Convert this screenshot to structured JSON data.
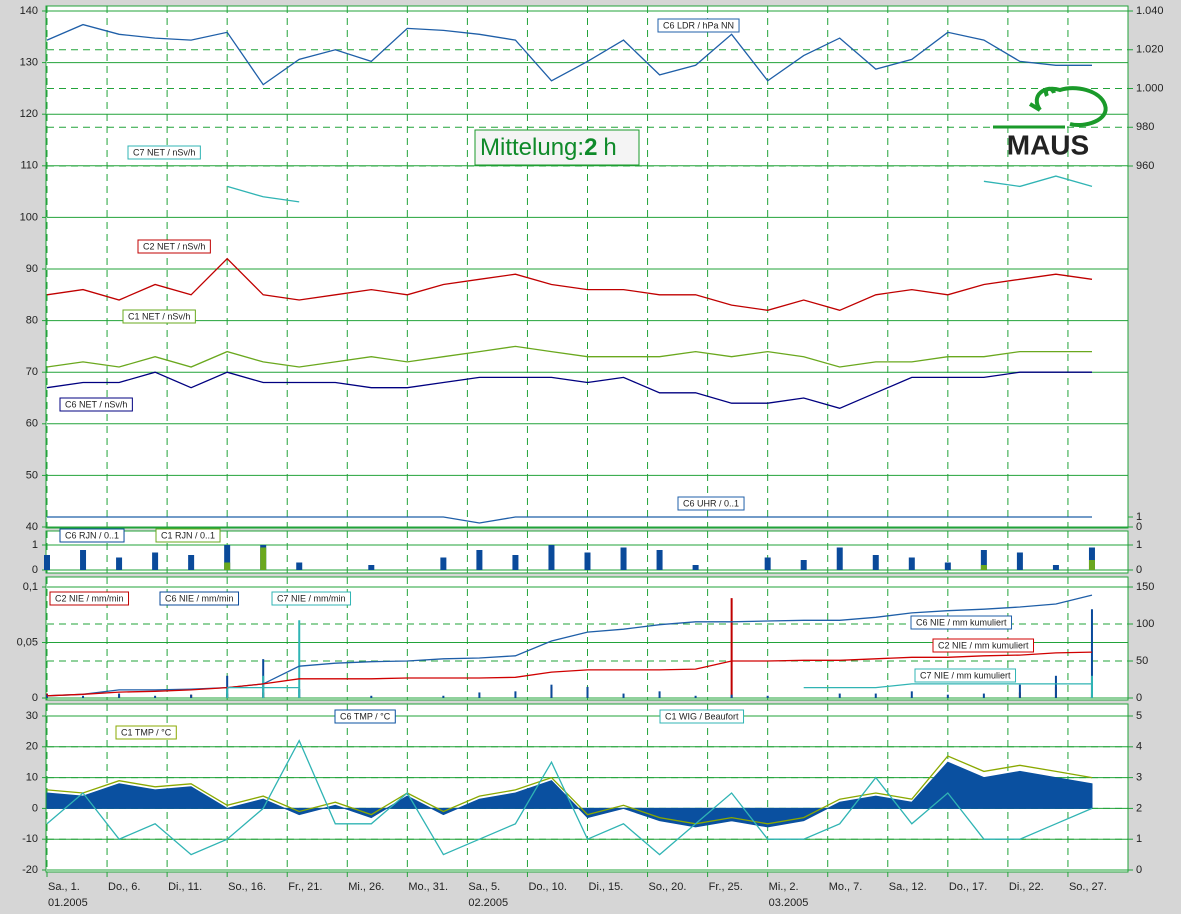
{
  "logo": "MAUS",
  "chart_data": [
    {
      "type": "line",
      "annotation": [
        "Mittelung:",
        "2",
        "h"
      ],
      "xlim": [
        "2005-01-01",
        "2005-04-01"
      ],
      "x": [
        "2005-01-01",
        "2005-01-04",
        "2005-01-07",
        "2005-01-10",
        "2005-01-13",
        "2005-01-16",
        "2005-01-19",
        "2005-01-22",
        "2005-01-25",
        "2005-01-28",
        "2005-01-31",
        "2005-02-03",
        "2005-02-06",
        "2005-02-09",
        "2005-02-12",
        "2005-02-15",
        "2005-02-18",
        "2005-02-21",
        "2005-02-24",
        "2005-02-27",
        "2005-03-02",
        "2005-03-05",
        "2005-03-08",
        "2005-03-11",
        "2005-03-14",
        "2005-03-17",
        "2005-03-20",
        "2005-03-23",
        "2005-03-26",
        "2005-03-29"
      ],
      "ylim": [
        40,
        140
      ],
      "yticks": [
        40,
        50,
        60,
        70,
        80,
        90,
        100,
        110,
        120,
        130,
        140
      ],
      "y2lim": [
        773.7,
        1040
      ],
      "y2ticks": [
        960,
        980,
        {
          "value": 1000,
          "label": "1.000"
        },
        {
          "value": 1020,
          "label": "1.020"
        },
        {
          "value": 1040,
          "label": "1.040"
        }
      ],
      "y3lim": [
        0,
        1
      ],
      "y3ticks": [
        0,
        1
      ],
      "grid": true,
      "series": [
        {
          "name": "C6 LDR / hPa NN",
          "color": "#1f5fa8",
          "axis": "y2",
          "values": [
            1025,
            1033,
            1028,
            1026,
            1025,
            1029,
            1002,
            1015,
            1020,
            1014,
            1031,
            1030,
            1028,
            1025,
            1004,
            1014,
            1025,
            1007,
            1012,
            1028,
            1004,
            1017,
            1026,
            1010,
            1015,
            1029,
            1025,
            1014,
            1012,
            1012
          ]
        },
        {
          "name": "C7 NET / nSv/h",
          "color": "#30b4b4",
          "values": [
            null,
            null,
            null,
            null,
            null,
            106,
            104,
            103,
            null,
            null,
            null,
            null,
            null,
            null,
            null,
            null,
            null,
            null,
            null,
            null,
            null,
            null,
            null,
            null,
            null,
            null,
            107,
            106,
            108,
            106
          ]
        },
        {
          "name": "C2 NET / nSv/h",
          "color": "#c00000",
          "values": [
            85,
            86,
            84,
            87,
            85,
            92,
            85,
            84,
            85,
            86,
            85,
            87,
            88,
            89,
            87,
            86,
            86,
            85,
            85,
            83,
            82,
            84,
            82,
            85,
            86,
            85,
            87,
            88,
            89,
            88
          ]
        },
        {
          "name": "C1 NET / nSv/h",
          "color": "#6aa81e",
          "values": [
            71,
            72,
            71,
            73,
            71,
            74,
            72,
            71,
            72,
            73,
            72,
            73,
            74,
            75,
            74,
            73,
            73,
            73,
            74,
            73,
            74,
            73,
            71,
            72,
            72,
            73,
            73,
            74,
            74,
            74
          ]
        },
        {
          "name": "C6 NET / nSv/h",
          "color": "#000080",
          "values": [
            67,
            68,
            68,
            70,
            67,
            70,
            68,
            68,
            68,
            67,
            67,
            68,
            69,
            69,
            69,
            68,
            69,
            66,
            66,
            64,
            64,
            65,
            63,
            66,
            69,
            69,
            69,
            70,
            70,
            70
          ]
        },
        {
          "name": "C6 UHR / 0..1",
          "color": "#1f5fa8",
          "axis": "y3",
          "values": [
            1,
            1,
            1,
            1,
            1,
            1,
            1,
            1,
            1,
            1,
            1,
            1,
            0.4,
            1,
            1,
            1,
            1,
            1,
            1,
            1,
            1,
            1,
            1,
            1,
            1,
            1,
            1,
            1,
            1,
            1
          ]
        }
      ]
    },
    {
      "type": "bar",
      "xlim": [
        "2005-01-01",
        "2005-04-01"
      ],
      "x": [
        "2005-01-01",
        "2005-01-04",
        "2005-01-07",
        "2005-01-10",
        "2005-01-13",
        "2005-01-16",
        "2005-01-19",
        "2005-01-22",
        "2005-01-25",
        "2005-01-28",
        "2005-01-31",
        "2005-02-03",
        "2005-02-06",
        "2005-02-09",
        "2005-02-12",
        "2005-02-15",
        "2005-02-18",
        "2005-02-21",
        "2005-02-24",
        "2005-02-27",
        "2005-03-02",
        "2005-03-05",
        "2005-03-08",
        "2005-03-11",
        "2005-03-14",
        "2005-03-17",
        "2005-03-20",
        "2005-03-23",
        "2005-03-26",
        "2005-03-29"
      ],
      "ylim": [
        0,
        1
      ],
      "yticks": [
        0,
        1
      ],
      "y2lim": [
        0,
        1
      ],
      "y2ticks": [
        0,
        1
      ],
      "grid": true,
      "series": [
        {
          "name": "C6 RJN / 0..1",
          "color": "#0a4a9a",
          "values": [
            0.6,
            0.8,
            0.5,
            0.7,
            0.6,
            1,
            1,
            0.3,
            0,
            0.2,
            0,
            0.5,
            0.8,
            0.6,
            1,
            0.7,
            0.9,
            0.8,
            0.2,
            0,
            0.5,
            0.4,
            0.9,
            0.6,
            0.5,
            0.3,
            0.8,
            0.7,
            0.2,
            0.9
          ]
        },
        {
          "name": "C1 RJN / 0..1",
          "color": "#6aa81e",
          "values": [
            0,
            0,
            0,
            0,
            0,
            0.3,
            0.9,
            0,
            0,
            0,
            0,
            0,
            0,
            0,
            0,
            0,
            0,
            0,
            0,
            0,
            0,
            0,
            0,
            0,
            0,
            0,
            0.2,
            0,
            0,
            0.4
          ]
        }
      ]
    },
    {
      "type": "line",
      "xlim": [
        "2005-01-01",
        "2005-04-01"
      ],
      "x": [
        "2005-01-01",
        "2005-01-04",
        "2005-01-07",
        "2005-01-10",
        "2005-01-13",
        "2005-01-16",
        "2005-01-19",
        "2005-01-22",
        "2005-01-25",
        "2005-01-28",
        "2005-01-31",
        "2005-02-03",
        "2005-02-06",
        "2005-02-09",
        "2005-02-12",
        "2005-02-15",
        "2005-02-18",
        "2005-02-21",
        "2005-02-24",
        "2005-02-27",
        "2005-03-02",
        "2005-03-05",
        "2005-03-08",
        "2005-03-11",
        "2005-03-14",
        "2005-03-17",
        "2005-03-20",
        "2005-03-23",
        "2005-03-26",
        "2005-03-29"
      ],
      "ylim": [
        0,
        0.1
      ],
      "yticks": [
        0,
        {
          "value": 0.05,
          "label": "0,05"
        },
        {
          "value": 0.1,
          "label": "0,1"
        }
      ],
      "y2lim": [
        0,
        150
      ],
      "y2ticks": [
        0,
        50,
        100,
        150
      ],
      "grid": true,
      "series": [
        {
          "name": "C2 NIE / mm/min",
          "color": "#c00000",
          "style": "spike",
          "values": [
            0.004,
            0,
            0.002,
            0,
            0.003,
            0.004,
            0.005,
            0,
            0,
            0,
            0,
            0,
            0,
            0,
            0.01,
            0,
            0,
            0,
            0,
            0.09,
            0,
            0,
            0,
            0,
            0,
            0,
            0,
            0.005,
            0.01,
            0.004
          ]
        },
        {
          "name": "C6 NIE / mm/min",
          "color": "#0a4a9a",
          "style": "spike",
          "values": [
            0.003,
            0.002,
            0.004,
            0.002,
            0.003,
            0.02,
            0.035,
            0.008,
            0,
            0.002,
            0,
            0.002,
            0.005,
            0.006,
            0.012,
            0.01,
            0.004,
            0.006,
            0.002,
            0.003,
            0.002,
            0,
            0.004,
            0.004,
            0.006,
            0.003,
            0.004,
            0.012,
            0.02,
            0.08
          ]
        },
        {
          "name": "C7 NIE / mm/min",
          "color": "#30b4b4",
          "style": "spike",
          "values": [
            0,
            0,
            0,
            0,
            0,
            0.01,
            0.02,
            0.07,
            0,
            0,
            0,
            0,
            0,
            0,
            0,
            0,
            0,
            0,
            0,
            0,
            0,
            0,
            0,
            0,
            0,
            0,
            0,
            0,
            0,
            0.02
          ]
        },
        {
          "name": "C6 NIE / mm kumuliert",
          "color": "#1f5fa8",
          "axis": "y2",
          "values": [
            3,
            5,
            11,
            11,
            12,
            14,
            19,
            43,
            47,
            49,
            50,
            53,
            54,
            57,
            77,
            89,
            93,
            99,
            103,
            103,
            104,
            105,
            105,
            109,
            115,
            118,
            120,
            123,
            127,
            139
          ]
        },
        {
          "name": "C2 NIE / mm kumuliert",
          "color": "#d00000",
          "axis": "y2",
          "values": [
            3,
            5,
            8,
            9,
            11,
            14,
            19,
            26,
            26,
            26,
            27,
            27,
            27,
            28,
            35,
            38,
            38,
            38,
            39,
            50,
            50,
            51,
            51,
            53,
            55,
            55,
            57,
            58,
            61,
            62
          ]
        },
        {
          "name": "C7 NIE / mm kumuliert",
          "color": "#30b4b4",
          "axis": "y2",
          "values": [
            null,
            null,
            null,
            null,
            null,
            14,
            14,
            14,
            null,
            null,
            null,
            null,
            null,
            null,
            null,
            null,
            null,
            null,
            null,
            null,
            null,
            14,
            14,
            14,
            19,
            19,
            19,
            19,
            19,
            19
          ]
        }
      ]
    },
    {
      "type": "line",
      "xlim": [
        "2005-01-01",
        "2005-04-01"
      ],
      "x": [
        "2005-01-01",
        "2005-01-04",
        "2005-01-07",
        "2005-01-10",
        "2005-01-13",
        "2005-01-16",
        "2005-01-19",
        "2005-01-22",
        "2005-01-25",
        "2005-01-28",
        "2005-01-31",
        "2005-02-03",
        "2005-02-06",
        "2005-02-09",
        "2005-02-12",
        "2005-02-15",
        "2005-02-18",
        "2005-02-21",
        "2005-02-24",
        "2005-02-27",
        "2005-03-02",
        "2005-03-05",
        "2005-03-08",
        "2005-03-11",
        "2005-03-14",
        "2005-03-17",
        "2005-03-20",
        "2005-03-23",
        "2005-03-26",
        "2005-03-29"
      ],
      "xticks": [
        {
          "value": "2005-01-01",
          "label": "Sa., 1.",
          "sublabel": "01.2005"
        },
        {
          "value": "2005-01-06",
          "label": "Do., 6."
        },
        {
          "value": "2005-01-11",
          "label": "Di., 11."
        },
        {
          "value": "2005-01-16",
          "label": "So., 16."
        },
        {
          "value": "2005-01-21",
          "label": "Fr., 21."
        },
        {
          "value": "2005-01-26",
          "label": "Mi., 26."
        },
        {
          "value": "2005-01-31",
          "label": "Mo., 31."
        },
        {
          "value": "2005-02-05",
          "label": "Sa., 5.",
          "sublabel": "02.2005"
        },
        {
          "value": "2005-02-10",
          "label": "Do., 10."
        },
        {
          "value": "2005-02-15",
          "label": "Di., 15."
        },
        {
          "value": "2005-02-20",
          "label": "So., 20."
        },
        {
          "value": "2005-02-25",
          "label": "Fr., 25."
        },
        {
          "value": "2005-03-02",
          "label": "Mi., 2.",
          "sublabel": "03.2005"
        },
        {
          "value": "2005-03-07",
          "label": "Mo., 7."
        },
        {
          "value": "2005-03-12",
          "label": "Sa., 12."
        },
        {
          "value": "2005-03-17",
          "label": "Do., 17."
        },
        {
          "value": "2005-03-22",
          "label": "Di., 22."
        },
        {
          "value": "2005-03-27",
          "label": "So., 27."
        }
      ],
      "ylim": [
        -20,
        30
      ],
      "yticks": [
        -20,
        -10,
        0,
        10,
        20,
        30
      ],
      "y2lim": [
        0,
        5
      ],
      "y2ticks": [
        0,
        1,
        2,
        3,
        4,
        5
      ],
      "grid": true,
      "series": [
        {
          "name": "C6 TMP / °C",
          "color": "#0a50a0",
          "style": "area",
          "values": [
            5,
            4,
            8,
            6,
            7,
            0,
            3,
            -2,
            1,
            -3,
            4,
            -2,
            3,
            5,
            9,
            -3,
            0,
            -4,
            -6,
            -4,
            -6,
            -4,
            2,
            4,
            2,
            15,
            10,
            12,
            10,
            8
          ]
        },
        {
          "name": "C1 TMP / °C",
          "color": "#8aa800",
          "values": [
            6,
            5,
            9,
            7,
            8,
            1,
            4,
            -1,
            2,
            -2,
            5,
            -1,
            4,
            6,
            10,
            -2,
            1,
            -3,
            -5,
            -3,
            -5,
            -3,
            3,
            5,
            3,
            17,
            12,
            14,
            12,
            10
          ]
        },
        {
          "name": "C1 WIG / Beaufort",
          "color": "#30b4b4",
          "axis": "y2",
          "values": [
            1.5,
            2.5,
            1,
            1.5,
            0.5,
            1,
            2,
            4.2,
            1.5,
            1.5,
            2.5,
            0.5,
            1,
            1.5,
            3.5,
            1,
            1.5,
            0.5,
            1.5,
            2.5,
            1,
            1,
            1.5,
            3,
            1.5,
            2.5,
            1,
            1,
            1.5,
            2
          ]
        }
      ]
    }
  ]
}
